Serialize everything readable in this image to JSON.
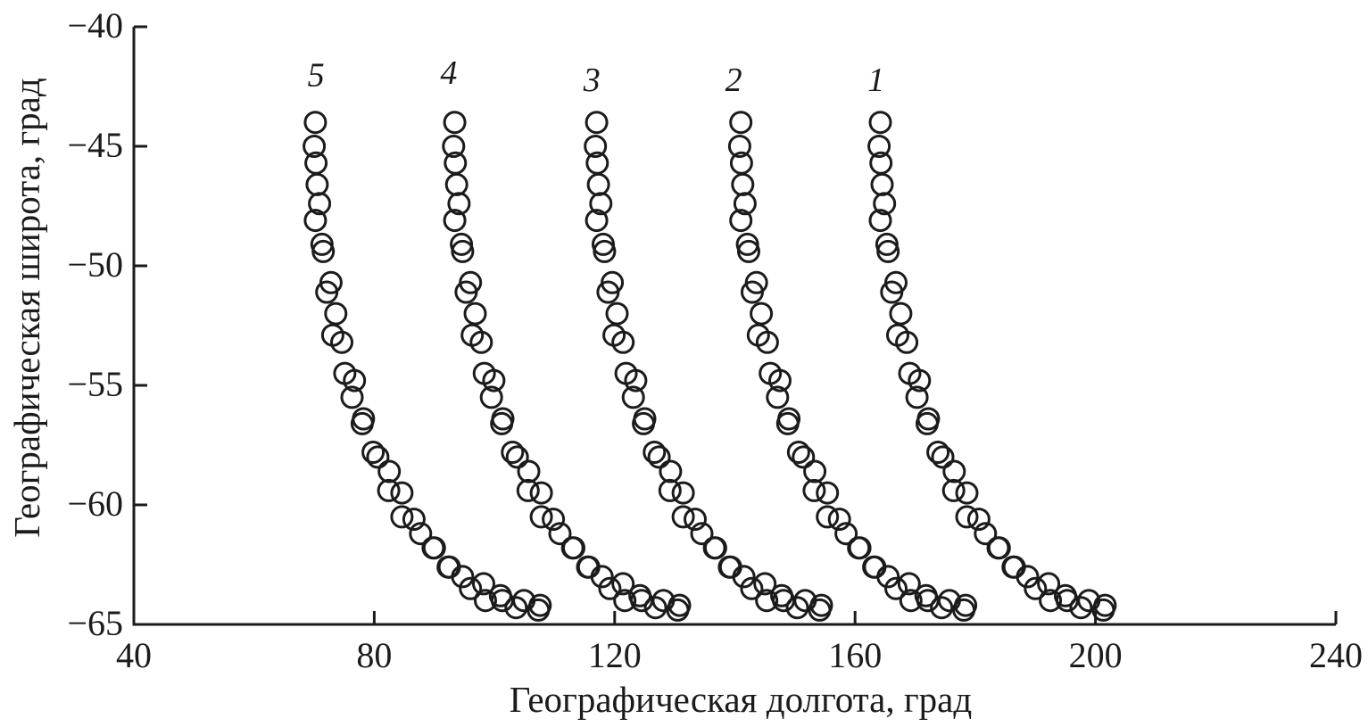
{
  "figure": {
    "background_color": "#ffffff",
    "ink_color": "#1b1b1b"
  },
  "chart_data": {
    "type": "scatter",
    "title": "",
    "xlabel": "Географическая долгота, град",
    "ylabel": "Географическая широта, град",
    "xlim": [
      40,
      240
    ],
    "ylim": [
      -65,
      -40
    ],
    "x_ticks": [
      40,
      80,
      120,
      160,
      200,
      240
    ],
    "y_ticks": [
      -40,
      -45,
      -50,
      -55,
      -60,
      -65
    ],
    "x_tick_labels": [
      "40",
      "80",
      "120",
      "160",
      "200",
      "240"
    ],
    "y_tick_labels": [
      "−40",
      "−45",
      "−50",
      "−55",
      "−60",
      "−65"
    ],
    "grid": false,
    "legend_position": "labels-above-curves",
    "marker": {
      "shape": "open-circle",
      "radius_px": 11.5,
      "stroke_px": 3,
      "color": "#1b1b1b"
    },
    "series": [
      {
        "name": "1",
        "label_pos": [
          163.5,
          -42.2
        ],
        "points": [
          [
            164.2,
            -44.0
          ],
          [
            164.0,
            -45.0
          ],
          [
            164.3,
            -45.7
          ],
          [
            164.5,
            -46.6
          ],
          [
            164.9,
            -47.4
          ],
          [
            164.2,
            -48.1
          ],
          [
            165.3,
            -49.1
          ],
          [
            165.5,
            -49.4
          ],
          [
            166.8,
            -50.7
          ],
          [
            166.1,
            -51.1
          ],
          [
            167.6,
            -52.0
          ],
          [
            167.1,
            -52.9
          ],
          [
            168.6,
            -53.2
          ],
          [
            169.1,
            -54.5
          ],
          [
            170.7,
            -54.8
          ],
          [
            170.3,
            -55.5
          ],
          [
            172.2,
            -56.4
          ],
          [
            172.0,
            -56.6
          ],
          [
            173.8,
            -57.8
          ],
          [
            174.6,
            -58.0
          ],
          [
            176.5,
            -58.6
          ],
          [
            176.4,
            -59.4
          ],
          [
            178.6,
            -59.5
          ],
          [
            178.6,
            -60.5
          ],
          [
            180.6,
            -60.6
          ],
          [
            181.7,
            -61.2
          ],
          [
            183.8,
            -61.8
          ],
          [
            184.0,
            -61.8
          ],
          [
            186.3,
            -62.6
          ],
          [
            186.5,
            -62.6
          ],
          [
            188.7,
            -63.0
          ],
          [
            190.0,
            -63.5
          ],
          [
            192.2,
            -63.3
          ],
          [
            192.5,
            -64.0
          ],
          [
            195.0,
            -63.8
          ],
          [
            195.3,
            -64.0
          ],
          [
            197.6,
            -64.3
          ],
          [
            198.9,
            -64.0
          ],
          [
            201.3,
            -64.4
          ],
          [
            201.6,
            -64.2
          ]
        ]
      },
      {
        "name": "2",
        "label_pos": [
          139.8,
          -42.2
        ],
        "points": [
          [
            141.0,
            -44.0
          ],
          [
            140.8,
            -45.0
          ],
          [
            141.1,
            -45.7
          ],
          [
            141.3,
            -46.6
          ],
          [
            141.7,
            -47.4
          ],
          [
            141.0,
            -48.1
          ],
          [
            142.1,
            -49.1
          ],
          [
            142.3,
            -49.4
          ],
          [
            143.6,
            -50.7
          ],
          [
            142.9,
            -51.1
          ],
          [
            144.4,
            -52.0
          ],
          [
            143.9,
            -52.9
          ],
          [
            145.4,
            -53.2
          ],
          [
            145.9,
            -54.5
          ],
          [
            147.5,
            -54.8
          ],
          [
            147.1,
            -55.5
          ],
          [
            149.0,
            -56.4
          ],
          [
            148.8,
            -56.6
          ],
          [
            150.6,
            -57.8
          ],
          [
            151.4,
            -58.0
          ],
          [
            153.3,
            -58.6
          ],
          [
            153.2,
            -59.4
          ],
          [
            155.4,
            -59.5
          ],
          [
            155.4,
            -60.5
          ],
          [
            157.4,
            -60.6
          ],
          [
            158.5,
            -61.2
          ],
          [
            160.6,
            -61.8
          ],
          [
            160.8,
            -61.8
          ],
          [
            163.1,
            -62.6
          ],
          [
            163.3,
            -62.6
          ],
          [
            165.5,
            -63.0
          ],
          [
            166.8,
            -63.5
          ],
          [
            169.0,
            -63.3
          ],
          [
            169.3,
            -64.0
          ],
          [
            171.8,
            -63.8
          ],
          [
            172.1,
            -64.0
          ],
          [
            174.4,
            -64.3
          ],
          [
            175.7,
            -64.0
          ],
          [
            178.1,
            -64.4
          ],
          [
            178.4,
            -64.2
          ]
        ]
      },
      {
        "name": "3",
        "label_pos": [
          116.2,
          -42.2
        ],
        "points": [
          [
            117.0,
            -44.0
          ],
          [
            116.8,
            -45.0
          ],
          [
            117.1,
            -45.7
          ],
          [
            117.3,
            -46.6
          ],
          [
            117.7,
            -47.4
          ],
          [
            117.0,
            -48.1
          ],
          [
            118.1,
            -49.1
          ],
          [
            118.3,
            -49.4
          ],
          [
            119.6,
            -50.7
          ],
          [
            118.9,
            -51.1
          ],
          [
            120.4,
            -52.0
          ],
          [
            119.9,
            -52.9
          ],
          [
            121.4,
            -53.2
          ],
          [
            121.9,
            -54.5
          ],
          [
            123.5,
            -54.8
          ],
          [
            123.1,
            -55.5
          ],
          [
            125.0,
            -56.4
          ],
          [
            124.8,
            -56.6
          ],
          [
            126.6,
            -57.8
          ],
          [
            127.4,
            -58.0
          ],
          [
            129.3,
            -58.6
          ],
          [
            129.2,
            -59.4
          ],
          [
            131.4,
            -59.5
          ],
          [
            131.4,
            -60.5
          ],
          [
            133.4,
            -60.6
          ],
          [
            134.5,
            -61.2
          ],
          [
            136.6,
            -61.8
          ],
          [
            136.8,
            -61.8
          ],
          [
            139.1,
            -62.6
          ],
          [
            139.3,
            -62.6
          ],
          [
            141.5,
            -63.0
          ],
          [
            142.8,
            -63.5
          ],
          [
            145.0,
            -63.3
          ],
          [
            145.3,
            -64.0
          ],
          [
            147.8,
            -63.8
          ],
          [
            148.1,
            -64.0
          ],
          [
            150.4,
            -64.3
          ],
          [
            151.7,
            -64.0
          ],
          [
            154.1,
            -64.4
          ],
          [
            154.4,
            -64.2
          ]
        ]
      },
      {
        "name": "4",
        "label_pos": [
          92.4,
          -41.9
        ],
        "points": [
          [
            93.4,
            -44.0
          ],
          [
            93.2,
            -45.0
          ],
          [
            93.5,
            -45.7
          ],
          [
            93.7,
            -46.6
          ],
          [
            94.1,
            -47.4
          ],
          [
            93.4,
            -48.1
          ],
          [
            94.5,
            -49.1
          ],
          [
            94.7,
            -49.4
          ],
          [
            96.0,
            -50.7
          ],
          [
            95.3,
            -51.1
          ],
          [
            96.8,
            -52.0
          ],
          [
            96.3,
            -52.9
          ],
          [
            97.8,
            -53.2
          ],
          [
            98.3,
            -54.5
          ],
          [
            99.9,
            -54.8
          ],
          [
            99.5,
            -55.5
          ],
          [
            101.4,
            -56.4
          ],
          [
            101.2,
            -56.6
          ],
          [
            103.0,
            -57.8
          ],
          [
            103.8,
            -58.0
          ],
          [
            105.7,
            -58.6
          ],
          [
            105.6,
            -59.4
          ],
          [
            107.8,
            -59.5
          ],
          [
            107.8,
            -60.5
          ],
          [
            109.8,
            -60.6
          ],
          [
            110.9,
            -61.2
          ],
          [
            113.0,
            -61.8
          ],
          [
            113.2,
            -61.8
          ],
          [
            115.5,
            -62.6
          ],
          [
            115.7,
            -62.6
          ],
          [
            117.9,
            -63.0
          ],
          [
            119.2,
            -63.5
          ],
          [
            121.4,
            -63.3
          ],
          [
            121.7,
            -64.0
          ],
          [
            124.2,
            -63.8
          ],
          [
            124.5,
            -64.0
          ],
          [
            126.8,
            -64.3
          ],
          [
            128.1,
            -64.0
          ],
          [
            130.5,
            -64.4
          ],
          [
            130.8,
            -64.2
          ]
        ]
      },
      {
        "name": "5",
        "label_pos": [
          70.3,
          -42.0
        ],
        "points": [
          [
            70.2,
            -44.0
          ],
          [
            70.0,
            -45.0
          ],
          [
            70.3,
            -45.7
          ],
          [
            70.5,
            -46.6
          ],
          [
            70.9,
            -47.4
          ],
          [
            70.2,
            -48.1
          ],
          [
            71.3,
            -49.1
          ],
          [
            71.5,
            -49.4
          ],
          [
            72.8,
            -50.7
          ],
          [
            72.1,
            -51.1
          ],
          [
            73.6,
            -52.0
          ],
          [
            73.1,
            -52.9
          ],
          [
            74.6,
            -53.2
          ],
          [
            75.1,
            -54.5
          ],
          [
            76.7,
            -54.8
          ],
          [
            76.3,
            -55.5
          ],
          [
            78.2,
            -56.4
          ],
          [
            78.0,
            -56.6
          ],
          [
            79.8,
            -57.8
          ],
          [
            80.6,
            -58.0
          ],
          [
            82.5,
            -58.6
          ],
          [
            82.4,
            -59.4
          ],
          [
            84.6,
            -59.5
          ],
          [
            84.6,
            -60.5
          ],
          [
            86.6,
            -60.6
          ],
          [
            87.7,
            -61.2
          ],
          [
            89.8,
            -61.8
          ],
          [
            90.0,
            -61.8
          ],
          [
            92.3,
            -62.6
          ],
          [
            92.5,
            -62.6
          ],
          [
            94.7,
            -63.0
          ],
          [
            96.0,
            -63.5
          ],
          [
            98.2,
            -63.3
          ],
          [
            98.5,
            -64.0
          ],
          [
            101.0,
            -63.8
          ],
          [
            101.3,
            -64.0
          ],
          [
            103.6,
            -64.3
          ],
          [
            104.9,
            -64.0
          ],
          [
            107.3,
            -64.4
          ],
          [
            107.6,
            -64.2
          ]
        ]
      }
    ]
  }
}
